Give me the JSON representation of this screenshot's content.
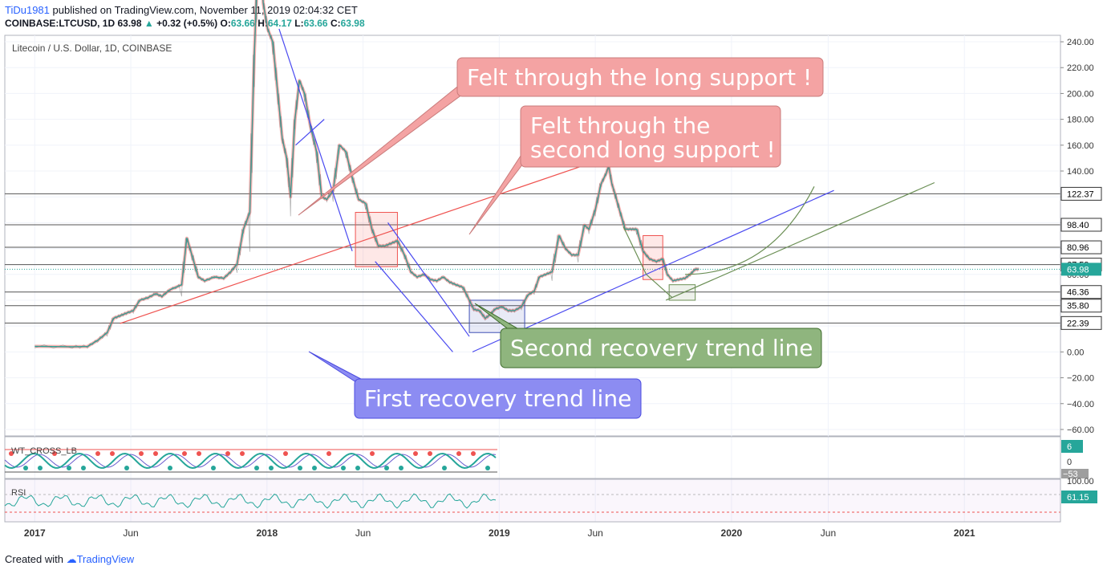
{
  "header": {
    "user": "TiDu1981",
    "published": " published on TradingView.com, November 11, 2019 02:04:32 CET",
    "symbol": "COINBASE:LTCUSD, 1D",
    "last": "63.98",
    "change": "+0.32 (+0.5%)",
    "o_label": "O:",
    "o": "63.66",
    "h_label": "H:",
    "h": "64.17",
    "l_label": "L:",
    "l": "63.66",
    "c_label": "C:",
    "c": "63.98"
  },
  "chart_data": {
    "type": "line",
    "title": "Litecoin / U.S. Dollar, 1D, COINBASE",
    "series": [
      {
        "values": [
          [
            "2017-01-01",
            4.3
          ],
          [
            "2017-03-01",
            4.0
          ],
          [
            "2017-03-25",
            4.2
          ],
          [
            "2017-04-10",
            9
          ],
          [
            "2017-04-25",
            15
          ],
          [
            "2017-05-05",
            26
          ],
          [
            "2017-05-15",
            28
          ],
          [
            "2017-05-25",
            30
          ],
          [
            "2017-06-05",
            32
          ],
          [
            "2017-06-15",
            40
          ],
          [
            "2017-06-28",
            42
          ],
          [
            "2017-07-10",
            45
          ],
          [
            "2017-07-20",
            43
          ],
          [
            "2017-08-01",
            48
          ],
          [
            "2017-08-20",
            52
          ],
          [
            "2017-08-28",
            88
          ],
          [
            "2017-09-05",
            75
          ],
          [
            "2017-09-15",
            58
          ],
          [
            "2017-09-25",
            55
          ],
          [
            "2017-10-10",
            58
          ],
          [
            "2017-10-25",
            57
          ],
          [
            "2017-11-05",
            62
          ],
          [
            "2017-11-15",
            68
          ],
          [
            "2017-11-25",
            95
          ],
          [
            "2017-12-05",
            108
          ],
          [
            "2017-12-12",
            230
          ],
          [
            "2017-12-20",
            330
          ],
          [
            "2017-12-26",
            270
          ],
          [
            "2018-01-02",
            250
          ],
          [
            "2018-01-10",
            240
          ],
          [
            "2018-01-18",
            200
          ],
          [
            "2018-01-25",
            165
          ],
          [
            "2018-02-01",
            150
          ],
          [
            "2018-02-07",
            120
          ],
          [
            "2018-02-14",
            180
          ],
          [
            "2018-02-21",
            210
          ],
          [
            "2018-03-01",
            200
          ],
          [
            "2018-03-10",
            175
          ],
          [
            "2018-03-20",
            155
          ],
          [
            "2018-03-28",
            120
          ],
          [
            "2018-04-05",
            118
          ],
          [
            "2018-04-15",
            125
          ],
          [
            "2018-04-25",
            160
          ],
          [
            "2018-05-05",
            155
          ],
          [
            "2018-05-15",
            135
          ],
          [
            "2018-05-25",
            118
          ],
          [
            "2018-06-05",
            115
          ],
          [
            "2018-06-15",
            95
          ],
          [
            "2018-06-25",
            82
          ],
          [
            "2018-07-05",
            82
          ],
          [
            "2018-07-15",
            84
          ],
          [
            "2018-07-25",
            86
          ],
          [
            "2018-08-05",
            75
          ],
          [
            "2018-08-15",
            62
          ],
          [
            "2018-08-25",
            58
          ],
          [
            "2018-09-05",
            60
          ],
          [
            "2018-09-15",
            56
          ],
          [
            "2018-09-25",
            55
          ],
          [
            "2018-10-05",
            58
          ],
          [
            "2018-10-15",
            54
          ],
          [
            "2018-10-25",
            52
          ],
          [
            "2018-11-05",
            50
          ],
          [
            "2018-11-15",
            40
          ],
          [
            "2018-11-22",
            33
          ],
          [
            "2018-12-01",
            32
          ],
          [
            "2018-12-10",
            26
          ],
          [
            "2018-12-18",
            29
          ],
          [
            "2018-12-25",
            33
          ],
          [
            "2019-01-05",
            35
          ],
          [
            "2019-01-15",
            32
          ],
          [
            "2019-01-25",
            32
          ],
          [
            "2019-02-05",
            35
          ],
          [
            "2019-02-15",
            44
          ],
          [
            "2019-02-25",
            47
          ],
          [
            "2019-03-05",
            58
          ],
          [
            "2019-03-15",
            60
          ],
          [
            "2019-03-25",
            62
          ],
          [
            "2019-04-05",
            90
          ],
          [
            "2019-04-15",
            80
          ],
          [
            "2019-04-25",
            75
          ],
          [
            "2019-05-05",
            75
          ],
          [
            "2019-05-15",
            98
          ],
          [
            "2019-05-22",
            95
          ],
          [
            "2019-06-01",
            110
          ],
          [
            "2019-06-10",
            130
          ],
          [
            "2019-06-18",
            138
          ],
          [
            "2019-06-22",
            144
          ],
          [
            "2019-06-27",
            130
          ],
          [
            "2019-07-02",
            122
          ],
          [
            "2019-07-10",
            108
          ],
          [
            "2019-07-18",
            95
          ],
          [
            "2019-07-28",
            95
          ],
          [
            "2019-08-05",
            95
          ],
          [
            "2019-08-15",
            78
          ],
          [
            "2019-08-25",
            72
          ],
          [
            "2019-09-05",
            70
          ],
          [
            "2019-09-15",
            72
          ],
          [
            "2019-09-22",
            60
          ],
          [
            "2019-10-01",
            55
          ],
          [
            "2019-10-10",
            56
          ],
          [
            "2019-10-20",
            57
          ],
          [
            "2019-10-28",
            60
          ],
          [
            "2019-11-05",
            64
          ],
          [
            "2019-11-11",
            63.98
          ]
        ]
      }
    ],
    "x_ticks": [
      "2017",
      "Jun",
      "2018",
      "Jun",
      "2019",
      "Jun",
      "2020",
      "Jun",
      "2021"
    ],
    "x_tick_dates": [
      "2017-01-01",
      "2017-06-01",
      "2018-01-01",
      "2018-06-01",
      "2019-01-01",
      "2019-06-01",
      "2020-01-01",
      "2020-06-01",
      "2021-01-01"
    ],
    "y_ticks": [
      240,
      220,
      200,
      180,
      160,
      140,
      120,
      100,
      80,
      60,
      40,
      20,
      0,
      -20,
      -40,
      -60
    ],
    "y_tick_labels": [
      "240.00",
      "220.00",
      "200.00",
      "180.00",
      "160.00",
      "140.00",
      "120.00",
      "100.00",
      "80.00",
      "60.00",
      "40.00",
      "20.00",
      "0.00",
      "−20.00",
      "−40.00",
      "−60.00"
    ],
    "xlim": [
      "2016-11-15",
      "2021-06-01"
    ],
    "ylim": [
      -65,
      245
    ],
    "horizontal_levels": [
      {
        "value": 122.37,
        "label": "122.37"
      },
      {
        "value": 98.4,
        "label": "98.40"
      },
      {
        "value": 80.96,
        "label": "80.96"
      },
      {
        "value": 67.59,
        "label": "67.59"
      },
      {
        "value": 46.36,
        "label": "46.36"
      },
      {
        "value": 35.8,
        "label": "35.80"
      },
      {
        "value": 22.39,
        "label": "22.39"
      }
    ],
    "current_price": {
      "value": 63.98,
      "label": "63.98"
    },
    "annotations": [
      {
        "text": "Felt through the long support !",
        "color": "#f4a3a3"
      },
      {
        "text": "Felt through the\nsecond long support !",
        "color": "#f4a3a3"
      },
      {
        "text": "Second recovery trend line",
        "color": "#8fb57e"
      },
      {
        "text": "First recovery trend line",
        "color": "#8c8cf2"
      }
    ],
    "trendlines": [
      {
        "name": "red support",
        "color": "#ef5350",
        "from": [
          "2017-05-15",
          22
        ],
        "to": [
          "2019-11-01",
          173
        ]
      },
      {
        "name": "blue support",
        "color": "#4a4af0",
        "from": [
          "2018-11-20",
          0
        ],
        "to": [
          "2020-06-10",
          125
        ]
      },
      {
        "name": "green support",
        "color": "#6b8f55",
        "from": [
          "2019-09-20",
          40
        ],
        "to": [
          "2020-11-15",
          131
        ]
      }
    ],
    "indicators": [
      {
        "name": "WT_CROSS_LB",
        "last_label": "6",
        "level_labels": [
          "0",
          "−53"
        ]
      },
      {
        "name": "RSI",
        "last_label": "61.15",
        "level_labels": [
          "100.00"
        ]
      }
    ]
  },
  "footer": {
    "created": "Created with ",
    "brand": "TradingView"
  },
  "colors": {
    "accent": "#2962ff",
    "up": "#26a69a",
    "price_tag": "#26a69a"
  }
}
